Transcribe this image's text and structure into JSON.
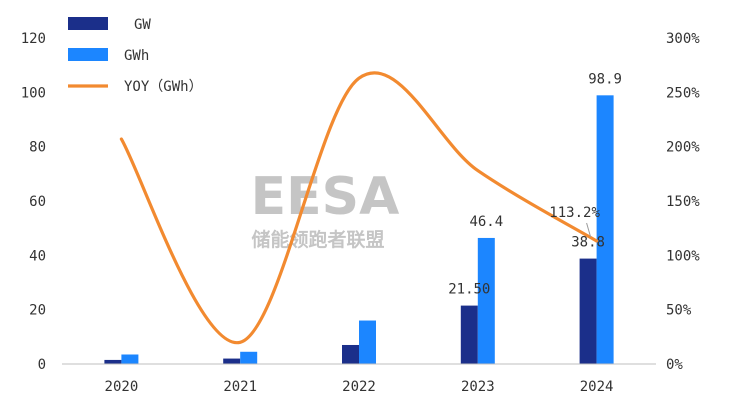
{
  "chart_data": {
    "type": "bar",
    "title": "",
    "categories": [
      "2020",
      "2021",
      "2022",
      "2023",
      "2024"
    ],
    "series": [
      {
        "name": "GW",
        "type": "bar",
        "axis": "left",
        "values": [
          1.5,
          2.0,
          7.0,
          21.5,
          38.8
        ],
        "value_labels": [
          "",
          "",
          "",
          "21.50",
          "38.8"
        ]
      },
      {
        "name": "GWh",
        "type": "bar",
        "axis": "left",
        "values": [
          3.5,
          4.5,
          16.0,
          46.4,
          98.9
        ],
        "value_labels": [
          "",
          "",
          "",
          "46.4",
          "98.9"
        ]
      },
      {
        "name": "YOY（GWh）",
        "type": "line",
        "axis": "right",
        "values": [
          207,
          20,
          263,
          178,
          113.2
        ],
        "value_labels": [
          "",
          "",
          "",
          "",
          "113.2%"
        ]
      }
    ],
    "y_left": {
      "range": [
        0,
        120
      ],
      "ticks": [
        "0",
        "20",
        "40",
        "60",
        "80",
        "100",
        "120"
      ]
    },
    "y_right": {
      "range": [
        0,
        300
      ],
      "ticks": [
        "0%",
        "50%",
        "100%",
        "150%",
        "200%",
        "250%",
        "300%"
      ]
    },
    "legend_placement": "top-left",
    "grid": false,
    "colors": {
      "GW": "#1b2f8a",
      "GWh": "#1c86ff",
      "YOY": "#f28a30",
      "axis": "#bfbfbf"
    }
  },
  "watermark": {
    "logo": "EESA",
    "text": "储能领跑者联盟"
  }
}
